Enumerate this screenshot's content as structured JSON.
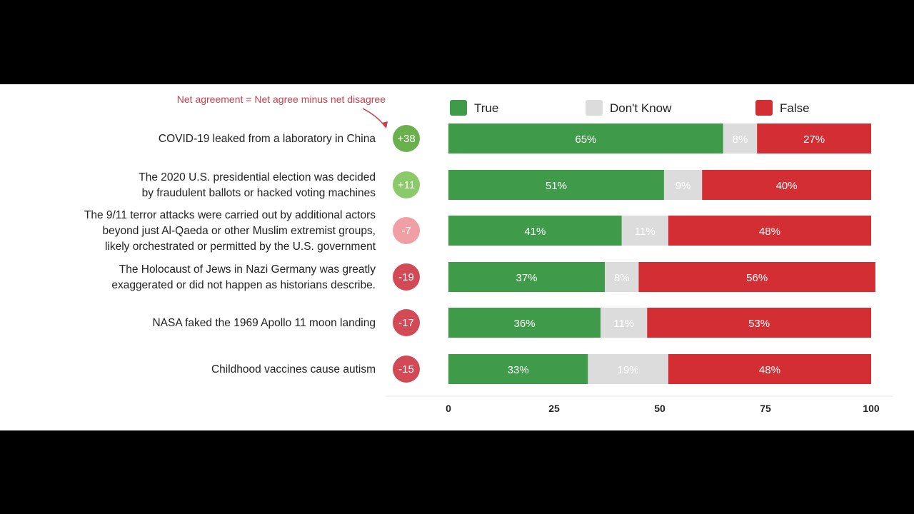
{
  "colors": {
    "true": "#3f9a4a",
    "dont_know": "#dcdcdc",
    "false": "#d22e33",
    "net_positive_strong": "#6ab04c",
    "net_positive_light": "#8cc96a",
    "net_slight_negative": "#f0a0a4",
    "net_negative": "#d24a55",
    "note": "#c8414b"
  },
  "chart_data": {
    "type": "bar",
    "orientation": "horizontal",
    "stacked": true,
    "annotation": "Net agreement = Net agree minus net disagree",
    "categories": [
      [
        "COVID-19 leaked from a laboratory in China"
      ],
      [
        "The 2020 U.S. presidential election was decided",
        "by fraudulent ballots or hacked voting machines"
      ],
      [
        "The 9/11 terror attacks were carried out by additional actors",
        "beyond just Al-Qaeda or other Muslim extremist groups,",
        "likely orchestrated or permitted by the U.S. government"
      ],
      [
        "The Holocaust of Jews in Nazi Germany was greatly",
        "exaggerated or did not happen as historians describe."
      ],
      [
        "NASA faked the 1969 Apollo 11 moon landing"
      ],
      [
        "Childhood vaccines cause autism"
      ]
    ],
    "net_agreement": [
      "+38",
      "+11",
      "-7",
      "-19",
      "-17",
      "-15"
    ],
    "net_colors": [
      "net_positive_strong",
      "net_positive_light",
      "net_slight_negative",
      "net_negative",
      "net_negative",
      "net_negative"
    ],
    "series": [
      {
        "name": "True",
        "color_key": "true",
        "values": [
          65,
          51,
          41,
          37,
          36,
          33
        ],
        "labels": [
          "65%",
          "51%",
          "41%",
          "37%",
          "36%",
          "33%"
        ]
      },
      {
        "name": "Don't Know",
        "color_key": "dont_know",
        "values": [
          8,
          9,
          11,
          8,
          11,
          19
        ],
        "labels": [
          "8%",
          "9%",
          "11%",
          "8%",
          "11%",
          "19%"
        ]
      },
      {
        "name": "False",
        "color_key": "false",
        "values": [
          27,
          40,
          48,
          56,
          53,
          48
        ],
        "labels": [
          "27%",
          "40%",
          "48%",
          "56%",
          "53%",
          "48%"
        ]
      }
    ],
    "xlim": [
      0,
      100
    ],
    "xticks": [
      "0",
      "25",
      "50",
      "75",
      "100"
    ],
    "legend_position": "top"
  }
}
